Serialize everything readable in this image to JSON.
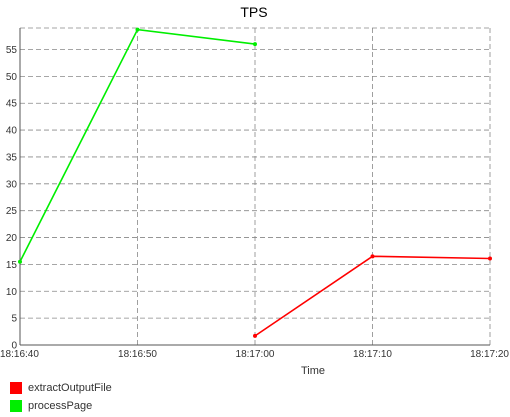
{
  "chart_data": {
    "type": "line",
    "title": "TPS",
    "xlabel": "Time",
    "ylabel": "",
    "x_ticks": [
      "18:16:40",
      "18:16:50",
      "18:17:00",
      "18:17:10",
      "18:17:20"
    ],
    "y_ticks": [
      0,
      5,
      10,
      15,
      20,
      25,
      30,
      35,
      40,
      45,
      50,
      55
    ],
    "xlim": [
      "18:16:40",
      "18:17:20"
    ],
    "ylim": [
      0,
      59
    ],
    "grid": true,
    "legend_position": "bottom-left",
    "series": [
      {
        "name": "extractOutputFile",
        "color": "#ff0000",
        "points": [
          {
            "x": "18:17:00",
            "y": 1.7
          },
          {
            "x": "18:17:10",
            "y": 16.5
          },
          {
            "x": "18:17:20",
            "y": 16.1
          }
        ]
      },
      {
        "name": "processPage",
        "color": "#00ee00",
        "points": [
          {
            "x": "18:16:40",
            "y": 15.5
          },
          {
            "x": "18:16:50",
            "y": 58.7
          },
          {
            "x": "18:17:00",
            "y": 56.0
          }
        ]
      }
    ]
  }
}
